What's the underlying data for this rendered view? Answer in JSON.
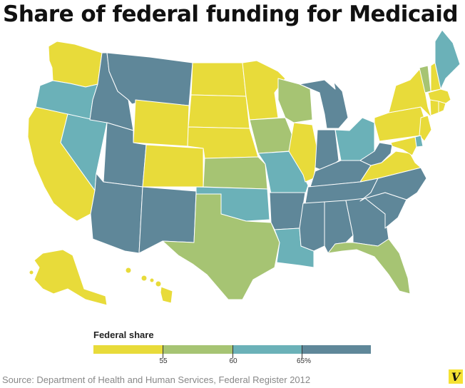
{
  "title": "Share of federal funding for Medicaid",
  "legend": {
    "title": "Federal share",
    "tick_labels": [
      "55",
      "60",
      "65%"
    ],
    "categories": [
      {
        "label": "50–55%",
        "color": "#e8db3a"
      },
      {
        "label": "55–60%",
        "color": "#a6c473"
      },
      {
        "label": "60–65%",
        "color": "#6bb1b8"
      },
      {
        "label": "65%+",
        "color": "#5f8799"
      }
    ]
  },
  "states": {
    "WA": "yellow",
    "OR": "teal",
    "CA": "yellow",
    "NV": "teal",
    "ID": "slate",
    "MT": "slate",
    "WY": "yellow",
    "UT": "slate",
    "AZ": "slate",
    "CO": "yellow",
    "NM": "slate",
    "ND": "yellow",
    "SD": "yellow",
    "NE": "yellow",
    "KS": "green",
    "OK": "teal",
    "TX": "green",
    "MN": "yellow",
    "IA": "green",
    "MO": "teal",
    "AR": "slate",
    "LA": "teal",
    "WI": "green",
    "IL": "yellow",
    "MI": "slate",
    "IN": "slate",
    "OH": "teal",
    "KY": "slate",
    "TN": "slate",
    "MS": "slate",
    "AL": "slate",
    "GA": "slate",
    "FL": "green",
    "SC": "slate",
    "NC": "slate",
    "VA": "yellow",
    "WV": "slate",
    "PA": "yellow",
    "NY": "yellow",
    "VT": "green",
    "NH": "yellow",
    "ME": "teal",
    "MA": "yellow",
    "CT": "yellow",
    "RI": "yellow",
    "NJ": "yellow",
    "DE": "teal",
    "MD": "yellow",
    "AK": "yellow",
    "HI": "yellow"
  },
  "source": "Source: Department of Health and Human Services, Federal Register 2012",
  "logo": "V"
}
